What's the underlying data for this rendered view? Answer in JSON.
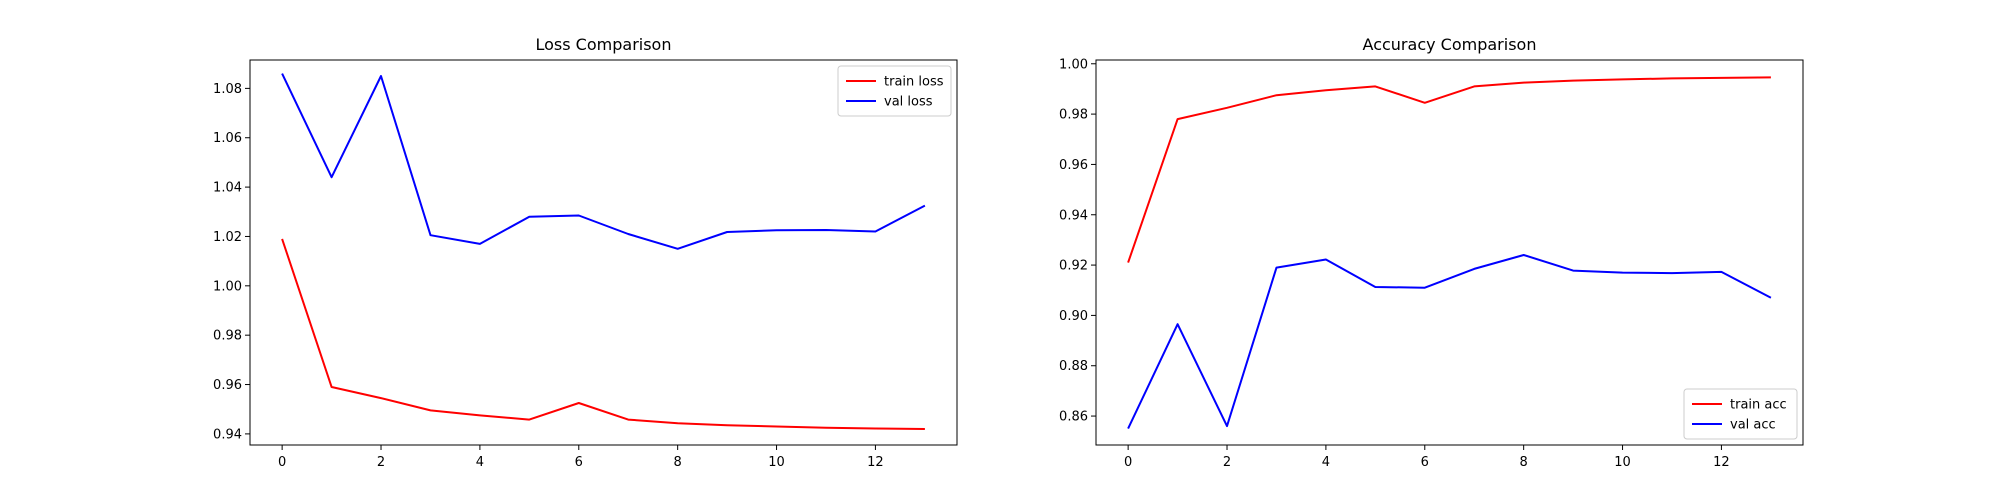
{
  "chart_data": [
    {
      "type": "line",
      "title": "Loss Comparison",
      "xlabel": "",
      "ylabel": "",
      "x": [
        0,
        1,
        2,
        3,
        4,
        5,
        6,
        7,
        8,
        9,
        10,
        11,
        12,
        13
      ],
      "xticks": [
        0,
        2,
        4,
        6,
        8,
        10,
        12
      ],
      "yticks": [
        0.94,
        0.96,
        0.98,
        1.0,
        1.02,
        1.04,
        1.06,
        1.08
      ],
      "ytick_decimals": 2,
      "xlim": [
        -0.65,
        13.65
      ],
      "ylim": [
        0.9355,
        1.0915
      ],
      "grid": false,
      "legend_position": "top-right",
      "series": [
        {
          "name": "train loss",
          "color": "#ff0000",
          "values": [
            1.019,
            0.959,
            0.9545,
            0.9495,
            0.9475,
            0.9458,
            0.9525,
            0.9458,
            0.9443,
            0.9435,
            0.943,
            0.9425,
            0.9422,
            0.942
          ]
        },
        {
          "name": "val loss",
          "color": "#0000ff",
          "values": [
            1.086,
            1.044,
            1.085,
            1.0205,
            1.017,
            1.028,
            1.0285,
            1.021,
            1.015,
            1.0218,
            1.0225,
            1.0226,
            1.022,
            1.0325
          ]
        }
      ]
    },
    {
      "type": "line",
      "title": "Accuracy Comparison",
      "xlabel": "",
      "ylabel": "",
      "x": [
        0,
        1,
        2,
        3,
        4,
        5,
        6,
        7,
        8,
        9,
        10,
        11,
        12,
        13
      ],
      "xticks": [
        0,
        2,
        4,
        6,
        8,
        10,
        12
      ],
      "yticks": [
        0.86,
        0.88,
        0.9,
        0.92,
        0.94,
        0.96,
        0.98,
        1.0
      ],
      "ytick_decimals": 2,
      "xlim": [
        -0.65,
        13.65
      ],
      "ylim": [
        0.8485,
        1.0015
      ],
      "grid": false,
      "legend_position": "bottom-right",
      "series": [
        {
          "name": "train acc",
          "color": "#ff0000",
          "values": [
            0.921,
            0.978,
            0.9825,
            0.9875,
            0.9895,
            0.991,
            0.9845,
            0.991,
            0.9925,
            0.9933,
            0.9938,
            0.9942,
            0.9944,
            0.9946
          ]
        },
        {
          "name": "val acc",
          "color": "#0000ff",
          "values": [
            0.855,
            0.8965,
            0.856,
            0.919,
            0.9222,
            0.9113,
            0.911,
            0.9185,
            0.924,
            0.9178,
            0.917,
            0.9168,
            0.9173,
            0.907
          ]
        }
      ]
    }
  ]
}
